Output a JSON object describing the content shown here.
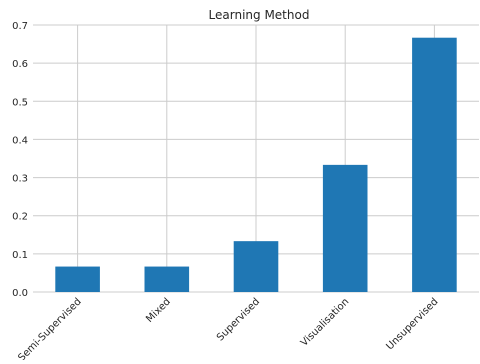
{
  "chart_data": {
    "type": "bar",
    "title": "Learning Method",
    "xlabel": "",
    "ylabel": "",
    "categories": [
      "Semi-Supervised",
      "Mixed",
      "Supervised",
      "Visualisation",
      "Unsupervised"
    ],
    "values": [
      0.0667,
      0.0667,
      0.1333,
      0.3333,
      0.6667
    ],
    "ylim": [
      0,
      0.7
    ],
    "yticks": [
      0.0,
      0.1,
      0.2,
      0.3,
      0.4,
      0.5,
      0.6,
      0.7
    ],
    "ytick_labels": [
      "0.0",
      "0.1",
      "0.2",
      "0.3",
      "0.4",
      "0.5",
      "0.6",
      "0.7"
    ],
    "grid": true,
    "legend": "none",
    "bar_color": "#1f77b4",
    "grid_color": "#cccccc"
  }
}
